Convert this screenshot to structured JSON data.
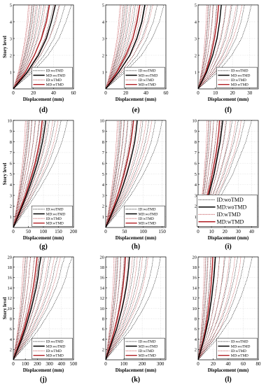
{
  "legend_labels": [
    "ID:woTMD",
    "MD:woTMD",
    "ID:wTMD",
    "MD:wTMD"
  ],
  "colors": {
    "wo": "#000000",
    "w": "#b01e23",
    "frame": "#000000"
  },
  "chart_data": [
    {
      "panel": "(d)",
      "type": "line",
      "xlabel": "Displacement (mm)",
      "ylabel": "Story level",
      "xlim": [
        0,
        60
      ],
      "ylim": [
        0,
        5
      ],
      "xticks": [
        0,
        20,
        40,
        60
      ],
      "yticks": [
        1,
        2,
        3,
        4,
        5
      ],
      "mean_wo": [
        0,
        14,
        25,
        33,
        38,
        42
      ],
      "mean_w": [
        0,
        12,
        21,
        28,
        33,
        36
      ],
      "spread_max": 58
    },
    {
      "panel": "(e)",
      "type": "line",
      "xlabel": "Displacement (mm)",
      "ylabel": "",
      "xlim": [
        0,
        60
      ],
      "ylim": [
        0,
        5
      ],
      "xticks": [
        0,
        20,
        40,
        60
      ],
      "yticks": [
        1,
        2,
        3,
        4,
        5
      ],
      "mean_wo": [
        0,
        13,
        24,
        31,
        36,
        39
      ],
      "mean_w": [
        0,
        11,
        20,
        27,
        31,
        34
      ],
      "spread_max": 58
    },
    {
      "panel": "(f)",
      "type": "line",
      "xlabel": "Displacement (mm)",
      "ylabel": "",
      "xlim": [
        0,
        35
      ],
      "ylim": [
        0,
        5
      ],
      "xticks": [
        0,
        10,
        20,
        30
      ],
      "yticks": [
        1,
        2,
        3,
        4,
        5
      ],
      "mean_wo": [
        0,
        5,
        8.5,
        11,
        12.5,
        13.5
      ],
      "mean_w": [
        0,
        4.5,
        7.5,
        9.5,
        11,
        12
      ],
      "spread_max": 31
    },
    {
      "panel": "(g)",
      "type": "line",
      "xlabel": "Displacement (mm)",
      "ylabel": "Story level",
      "xlim": [
        0,
        200
      ],
      "ylim": [
        0,
        10
      ],
      "xticks": [
        0,
        50,
        100,
        150,
        200
      ],
      "yticks": [
        1,
        2,
        3,
        4,
        5,
        6,
        7,
        8,
        9,
        10
      ],
      "mean_wo": [
        0,
        15,
        30,
        44,
        57,
        69,
        80,
        89,
        97,
        103,
        108
      ],
      "mean_w": [
        0,
        13,
        27,
        40,
        51,
        62,
        72,
        80,
        87,
        92,
        96
      ],
      "spread_max": 180
    },
    {
      "panel": "(h)",
      "type": "line",
      "xlabel": "Displacement (mm)",
      "ylabel": "",
      "xlim": [
        0,
        160
      ],
      "ylim": [
        0,
        10
      ],
      "xticks": [
        0,
        50,
        100,
        150
      ],
      "yticks": [
        1,
        2,
        3,
        4,
        5,
        6,
        7,
        8,
        9,
        10
      ],
      "mean_wo": [
        0,
        13,
        25,
        37,
        47,
        56,
        64,
        71,
        77,
        81,
        84
      ],
      "mean_w": [
        0,
        11,
        22,
        32,
        41,
        49,
        56,
        62,
        67,
        71,
        74
      ],
      "spread_max": 150
    },
    {
      "panel": "(i)",
      "type": "line",
      "xlabel": "Displacement (mm)",
      "ylabel": "",
      "xlim": [
        0,
        45
      ],
      "ylim": [
        0,
        10
      ],
      "xticks": [
        0,
        10,
        20,
        30,
        40
      ],
      "yticks": [
        1,
        2,
        3,
        4,
        5,
        6,
        7,
        8,
        9,
        10
      ],
      "mean_wo": [
        0,
        3,
        5.5,
        8,
        10,
        12,
        13.5,
        15,
        16.5,
        17.5,
        18.5
      ],
      "mean_w": [
        0,
        2.5,
        5,
        7,
        9,
        10.5,
        12,
        13.5,
        14.5,
        15.5,
        16
      ],
      "spread_max": 40
    },
    {
      "panel": "(j)",
      "type": "line",
      "xlabel": "Displacement (mm)",
      "ylabel": "Story level",
      "xlim": [
        0,
        500
      ],
      "ylim": [
        0,
        20
      ],
      "xticks": [
        0,
        100,
        200,
        300,
        400,
        500
      ],
      "yticks": [
        2,
        4,
        6,
        8,
        10,
        12,
        14,
        16,
        18,
        20
      ],
      "mean_wo": [
        0,
        35,
        70,
        100,
        125,
        150,
        170,
        190,
        205,
        215,
        230
      ],
      "mean_w": [
        0,
        30,
        60,
        88,
        110,
        132,
        150,
        165,
        178,
        188,
        198
      ],
      "spread_max": 490
    },
    {
      "panel": "(k)",
      "type": "line",
      "xlabel": "Displacement (mm)",
      "ylabel": "",
      "xlim": [
        0,
        330
      ],
      "ylim": [
        0,
        20
      ],
      "xticks": [
        0,
        100,
        200,
        300
      ],
      "yticks": [
        2,
        4,
        6,
        8,
        10,
        12,
        14,
        16,
        18,
        20
      ],
      "mean_wo": [
        0,
        20,
        40,
        60,
        75,
        90,
        102,
        112,
        120,
        126,
        130
      ],
      "mean_w": [
        0,
        17,
        34,
        50,
        64,
        76,
        86,
        94,
        100,
        105,
        108
      ],
      "spread_max": 300
    },
    {
      "panel": "(l)",
      "type": "line",
      "xlabel": "Displacement (mm)",
      "ylabel": "",
      "xlim": [
        0,
        80
      ],
      "ylim": [
        0,
        20
      ],
      "xticks": [
        0,
        20,
        40,
        60,
        80
      ],
      "yticks": [
        2,
        4,
        6,
        8,
        10,
        12,
        14,
        16,
        18,
        20
      ],
      "mean_wo": [
        0,
        4,
        8,
        11,
        14,
        16,
        18,
        19.5,
        21,
        22,
        23
      ],
      "mean_w": [
        0,
        3.5,
        7,
        10,
        12,
        14,
        15.5,
        17,
        18,
        19,
        19.5
      ],
      "spread_max": 72
    }
  ]
}
